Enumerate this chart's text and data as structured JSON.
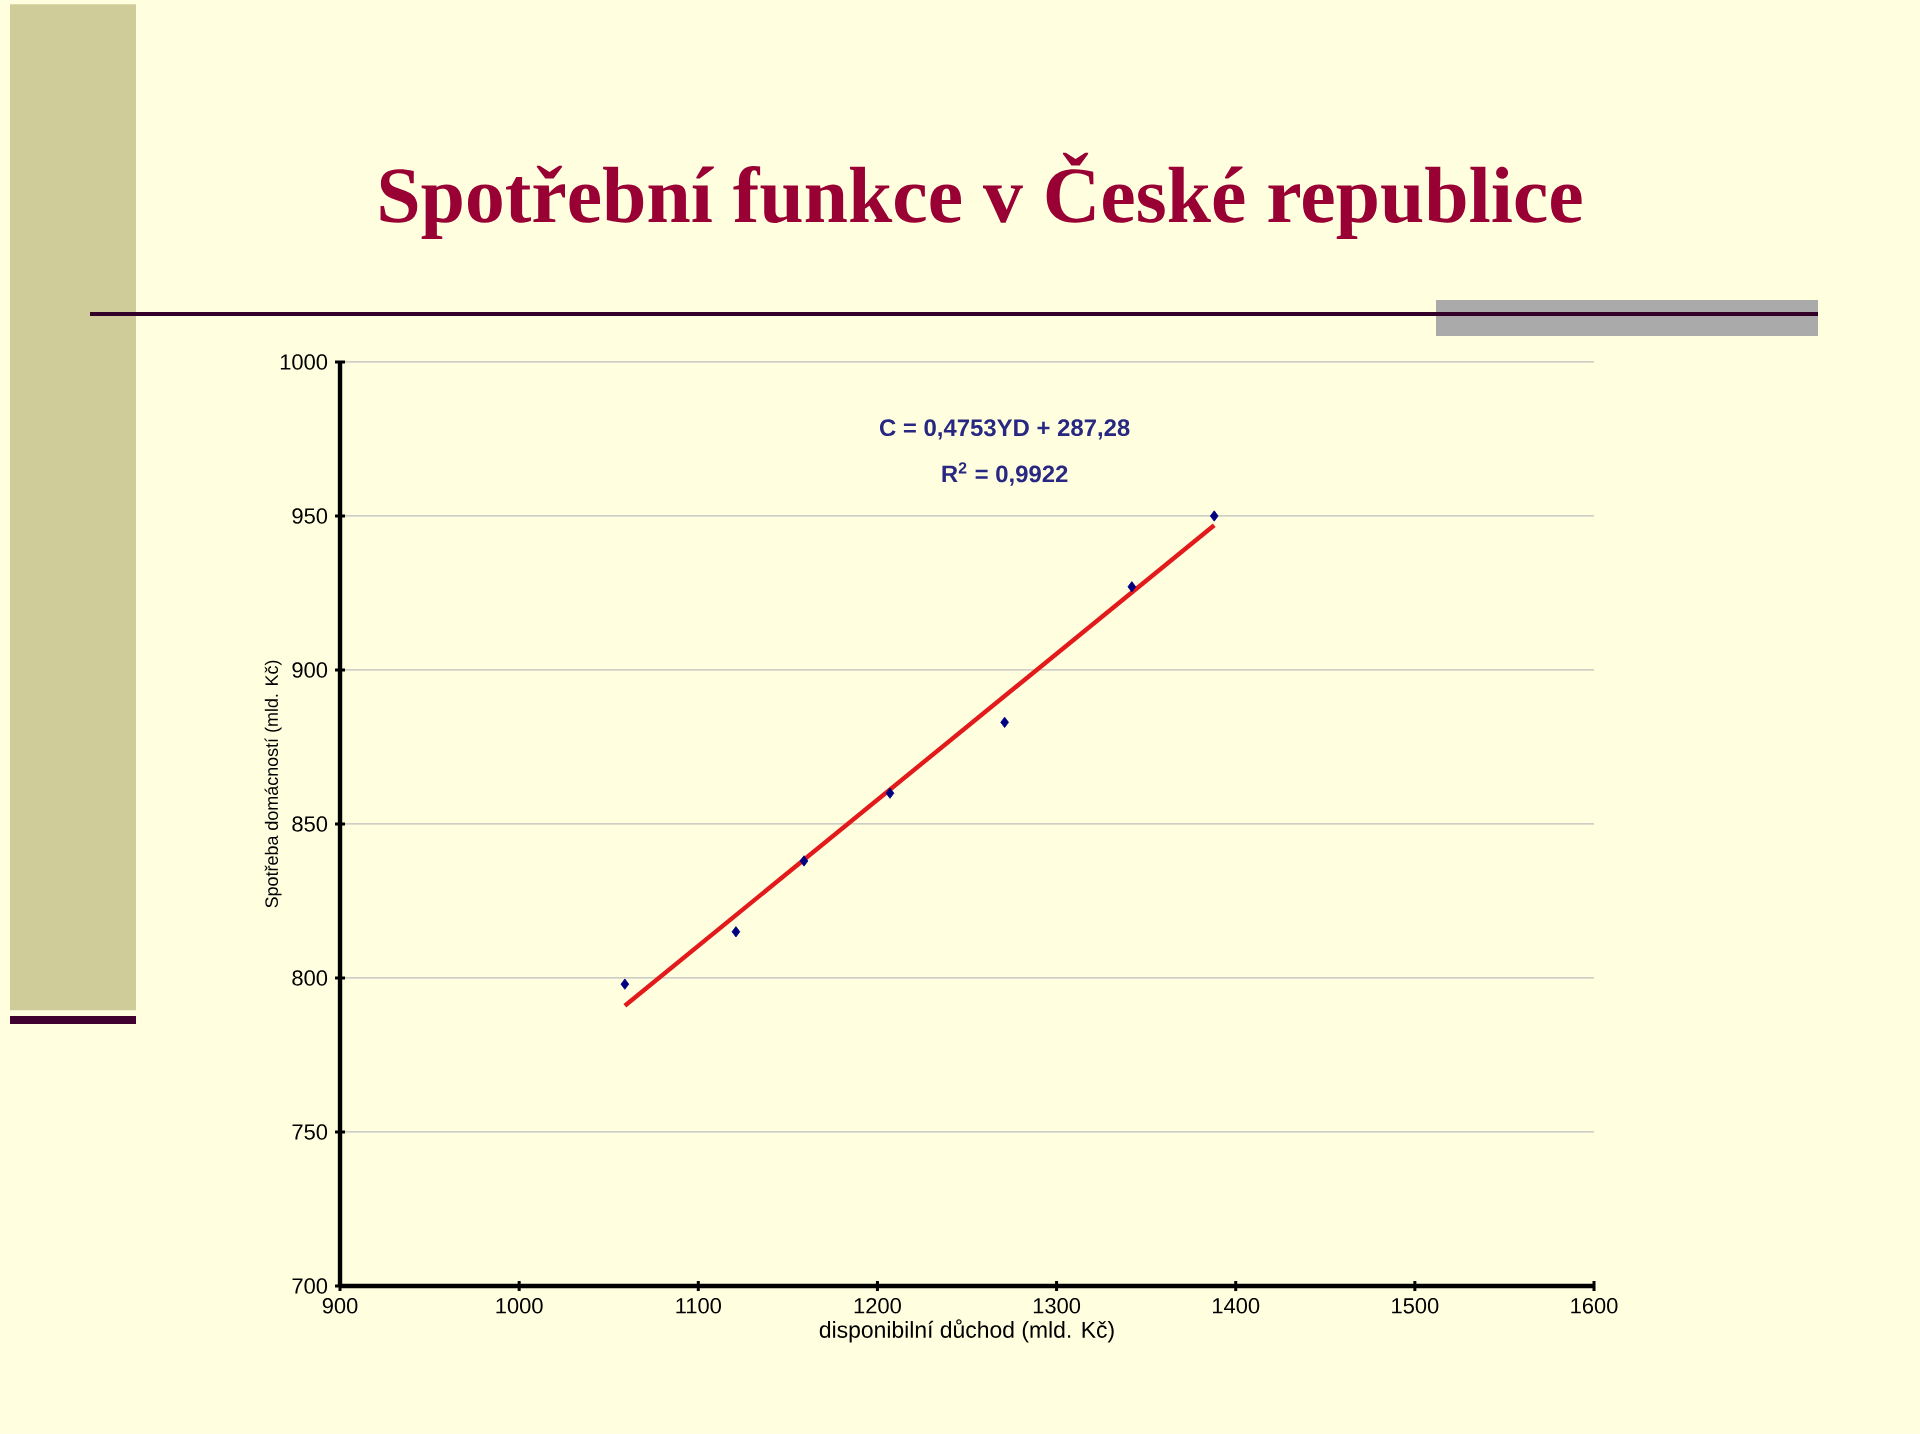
{
  "chart_data": {
    "type": "scatter",
    "title": "Spotřební funkce v České republice",
    "xlabel": "disponibilní důchod (mld. Kč)",
    "ylabel": "Spotřeba domácností (mld. Kč)",
    "annotations": [
      "C = 0,4753YD + 287,28",
      "R$^{2}$ = 0,9922"
    ],
    "series": [
      {
        "color": "#000080",
        "marker": "diamond",
        "x": [
          1059,
          1121,
          1159,
          1207,
          1271,
          1342,
          1388
        ],
        "values": [
          798,
          815,
          838,
          860,
          883,
          927,
          950
        ]
      },
      {
        "type": "line",
        "color": "#e31a1c",
        "marker": "none",
        "x": [
          1059,
          1388
        ],
        "values": [
          791,
          947
        ]
      }
    ],
    "xlim": [
      900,
      1600
    ],
    "xticks": [
      900,
      1000,
      1100,
      1200,
      1300,
      1400,
      1500,
      1600
    ],
    "ylim": [
      700,
      1000
    ],
    "yticks": [
      700,
      750,
      800,
      850,
      900,
      950,
      1000
    ],
    "grid": "y"
  }
}
